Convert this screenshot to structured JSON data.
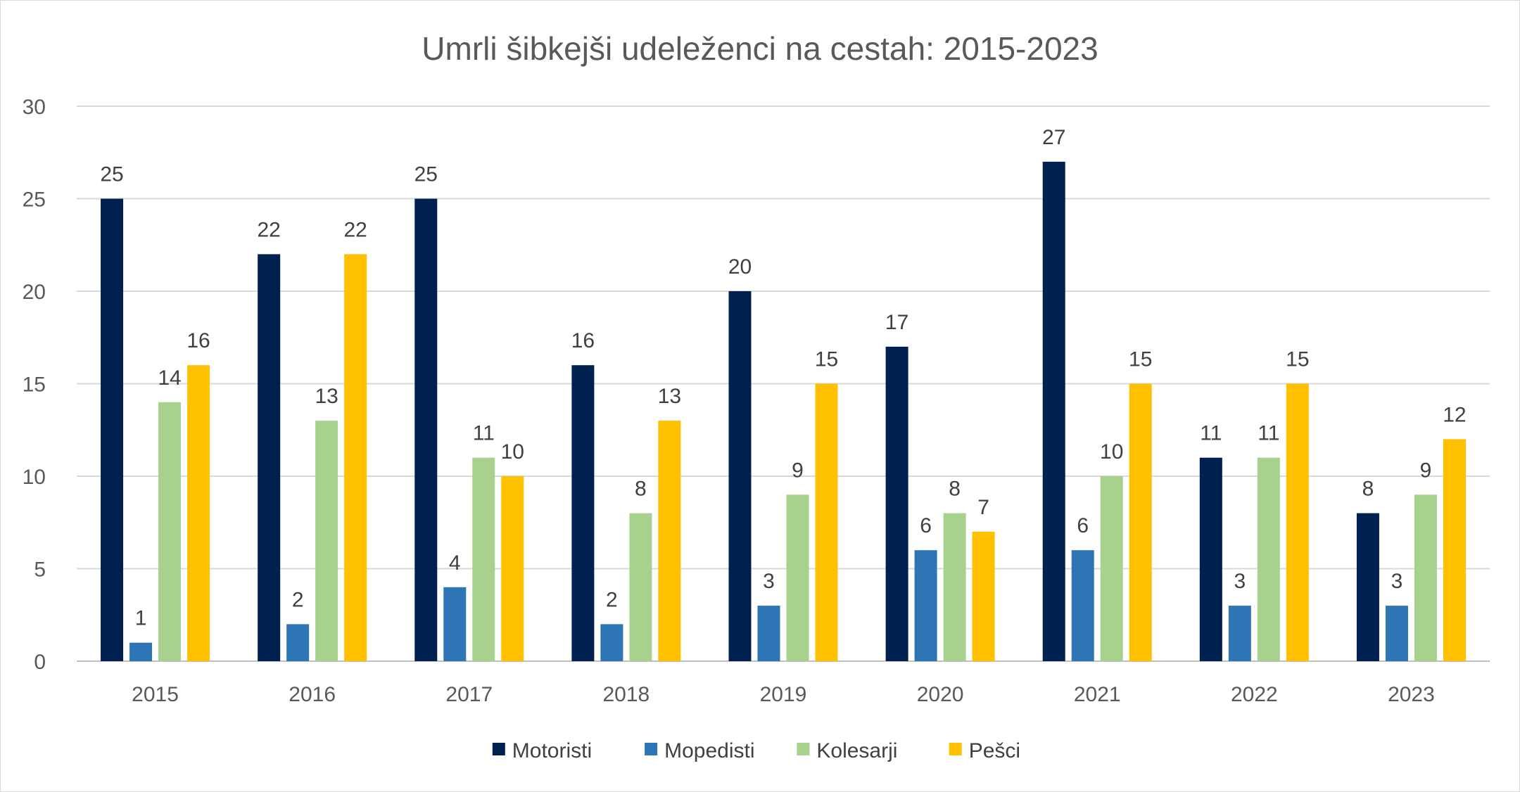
{
  "chart_data": {
    "type": "bar",
    "title": "Umrli šibkejši udeleženci na cestah: 2015-2023",
    "xlabel": "",
    "ylabel": "",
    "ylim": [
      0,
      30
    ],
    "yticks": [
      0,
      5,
      10,
      15,
      20,
      25,
      30
    ],
    "categories": [
      "2015",
      "2016",
      "2017",
      "2018",
      "2019",
      "2020",
      "2021",
      "2022",
      "2023"
    ],
    "grid": true,
    "legend_position": "bottom",
    "series": [
      {
        "name": "Motoristi",
        "color": "#002050",
        "values": [
          25,
          22,
          25,
          16,
          20,
          17,
          27,
          11,
          8
        ]
      },
      {
        "name": "Mopedisti",
        "color": "#2e75b6",
        "values": [
          1,
          2,
          4,
          2,
          3,
          6,
          6,
          3,
          3
        ]
      },
      {
        "name": "Kolesarji",
        "color": "#a9d18e",
        "values": [
          14,
          13,
          11,
          8,
          9,
          8,
          10,
          11,
          9
        ]
      },
      {
        "name": "Pešci",
        "color": "#ffc000",
        "values": [
          16,
          22,
          10,
          13,
          15,
          7,
          15,
          15,
          12
        ]
      }
    ]
  }
}
